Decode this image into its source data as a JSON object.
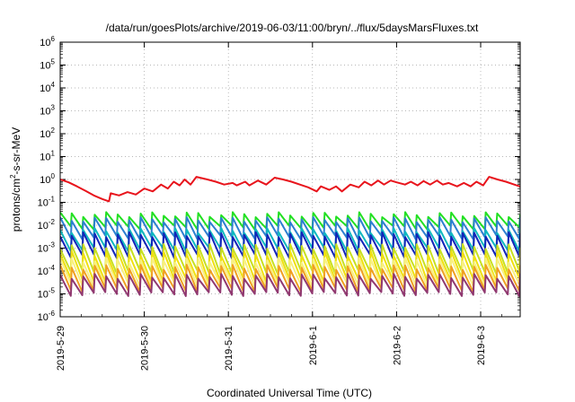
{
  "chart_data": {
    "type": "line",
    "title": "/data/run/goesPlots/archive/2019-06-03/11:00/bryn/../flux/5daysMarsFluxes.txt",
    "xlabel": "Coordinated Universal Time (UTC)",
    "ylabel_main": "protons/cm",
    "ylabel_sup": "2",
    "ylabel_tail": "-s-sr-MeV",
    "y_scale": "log",
    "ylim": [
      1e-06,
      1000000.0
    ],
    "xlim_days": [
      0,
      5.5
    ],
    "grid": true,
    "legend": "none",
    "x_tick_labels": [
      "2019-5-29",
      "2019-5-30",
      "2019-5-31",
      "2019-6-1",
      "2019-6-2",
      "2019-6-3"
    ],
    "y_tick_exponents": [
      -6,
      -5,
      -4,
      -3,
      -2,
      -1,
      0,
      1,
      2,
      3,
      4,
      5,
      6
    ],
    "series": [
      {
        "color": "#e8141c",
        "points": [
          [
            0.0,
            1.0
          ],
          [
            0.1,
            0.75
          ],
          [
            0.2,
            0.5
          ],
          [
            0.3,
            0.32
          ],
          [
            0.4,
            0.2
          ],
          [
            0.5,
            0.14
          ],
          [
            0.58,
            0.11
          ],
          [
            0.6,
            0.25
          ],
          [
            0.7,
            0.2
          ],
          [
            0.8,
            0.28
          ],
          [
            0.9,
            0.22
          ],
          [
            1.0,
            0.4
          ],
          [
            1.1,
            0.3
          ],
          [
            1.2,
            0.6
          ],
          [
            1.28,
            0.4
          ],
          [
            1.35,
            0.8
          ],
          [
            1.42,
            0.55
          ],
          [
            1.48,
            1.0
          ],
          [
            1.55,
            0.6
          ],
          [
            1.62,
            1.3
          ],
          [
            1.75,
            1.0
          ],
          [
            1.85,
            0.8
          ],
          [
            1.95,
            0.6
          ],
          [
            2.05,
            0.7
          ],
          [
            2.1,
            0.55
          ],
          [
            2.2,
            0.8
          ],
          [
            2.25,
            0.55
          ],
          [
            2.35,
            0.9
          ],
          [
            2.45,
            0.6
          ],
          [
            2.55,
            1.2
          ],
          [
            2.65,
            1.0
          ],
          [
            2.75,
            0.8
          ],
          [
            2.85,
            0.6
          ],
          [
            2.95,
            0.45
          ],
          [
            3.05,
            0.3
          ],
          [
            3.1,
            0.5
          ],
          [
            3.2,
            0.35
          ],
          [
            3.28,
            0.5
          ],
          [
            3.35,
            0.3
          ],
          [
            3.45,
            0.6
          ],
          [
            3.55,
            0.45
          ],
          [
            3.62,
            0.8
          ],
          [
            3.7,
            0.55
          ],
          [
            3.78,
            0.9
          ],
          [
            3.85,
            0.6
          ],
          [
            3.93,
            0.9
          ],
          [
            4.0,
            0.75
          ],
          [
            4.1,
            0.6
          ],
          [
            4.17,
            0.8
          ],
          [
            4.25,
            0.55
          ],
          [
            4.32,
            0.85
          ],
          [
            4.4,
            0.6
          ],
          [
            4.48,
            0.9
          ],
          [
            4.55,
            0.6
          ],
          [
            4.62,
            0.7
          ],
          [
            4.72,
            0.5
          ],
          [
            4.8,
            0.7
          ],
          [
            4.88,
            0.5
          ],
          [
            4.95,
            0.8
          ],
          [
            5.03,
            0.55
          ],
          [
            5.1,
            1.3
          ],
          [
            5.2,
            1.0
          ],
          [
            5.3,
            0.8
          ],
          [
            5.4,
            0.6
          ],
          [
            5.5,
            0.45
          ],
          [
            5.55,
            0.35
          ],
          [
            5.6,
            0.25
          ],
          [
            5.65,
            0.2
          ],
          [
            5.7,
            0.26
          ]
        ]
      },
      {
        "color": "#22e022",
        "base": 0.03,
        "low": 0.008,
        "n": 40
      },
      {
        "color": "#2c7fd0",
        "base": 0.018,
        "low": 0.003,
        "n": 40
      },
      {
        "color": "#0fb8c0",
        "base": 0.006,
        "low": 0.0009,
        "n": 40
      },
      {
        "color": "#1224b8",
        "base": 0.004,
        "low": 0.00045,
        "n": 40
      },
      {
        "color": "#c8e020",
        "base": 0.0012,
        "low": 9e-05,
        "n": 40
      },
      {
        "color": "#f0e010",
        "base": 0.0006,
        "low": 4e-05,
        "n": 40
      },
      {
        "color": "#f8f080",
        "base": 0.0003,
        "low": 2.5e-05,
        "n": 40
      },
      {
        "color": "#f0a020",
        "base": 0.00015,
        "low": 1.5e-05,
        "n": 40
      },
      {
        "color": "#903870",
        "base": 6e-05,
        "low": 1e-05,
        "n": 40
      }
    ]
  }
}
